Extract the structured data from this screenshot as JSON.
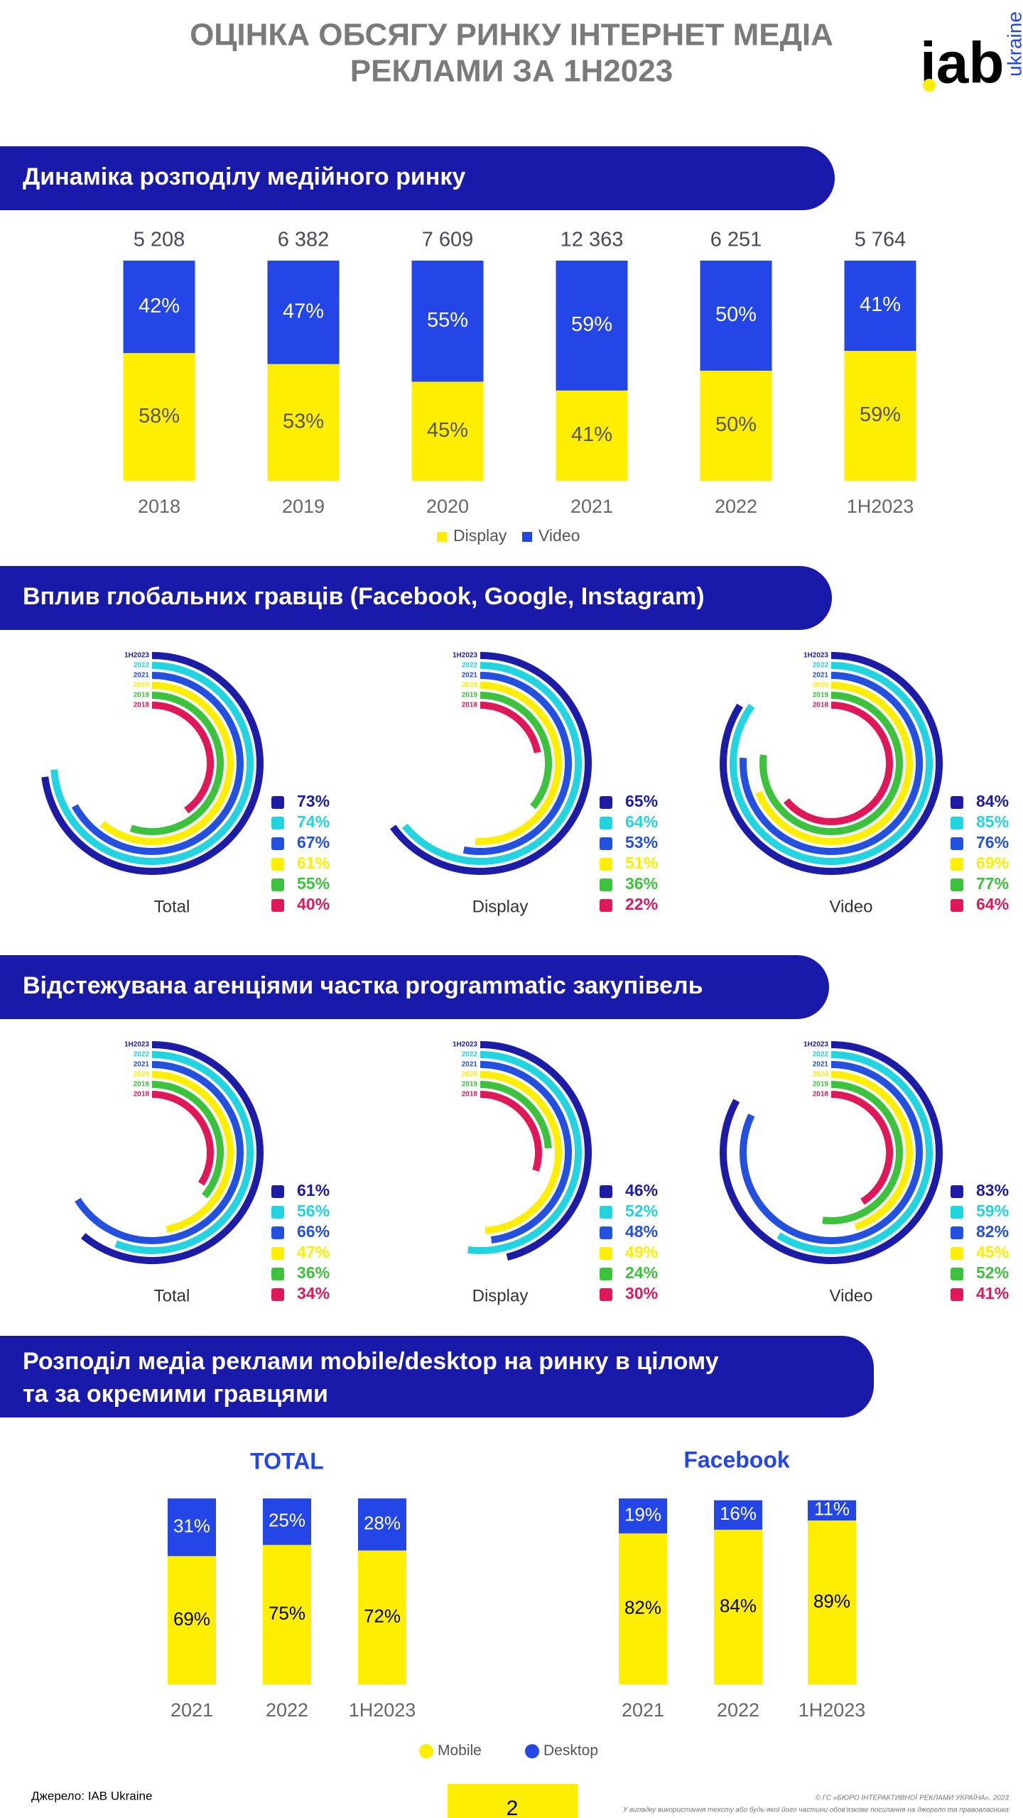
{
  "header": {
    "title": [
      "ОЦІНКА ОБСЯГУ РИНКУ ІНТЕРНЕТ МЕДІА",
      "РЕКЛАМИ ЗА 1Н2023"
    ],
    "logo": "iab",
    "logo_sub": "ukraine"
  },
  "sections": [
    [
      "Динаміка розподілу медійного ринку"
    ],
    [
      "Вплив глобальних гравців (Facebook, Google, Instagram)"
    ],
    [
      "Відстежувана агенціями частка programmatic закупівель"
    ],
    [
      "Розподіл медіа реклами mobile/desktop на ринку в цілому",
      "та за окремими гравцями"
    ]
  ],
  "chart_data": [
    {
      "type": "stacked_bar",
      "categories": [
        "2018",
        "2019",
        "2020",
        "2021",
        "2022",
        "1H2023"
      ],
      "annotations": [
        "5 208",
        "6 382",
        "7 609",
        "12 363",
        "6 251",
        "5 764"
      ],
      "ylim": [
        0,
        100
      ],
      "series": [
        {
          "name": "Display",
          "color": "#ffee00",
          "values": [
            58,
            53,
            45,
            41,
            50,
            59
          ],
          "value_labels": [
            "58%",
            "53%",
            "45%",
            "41%",
            "50%",
            "59%"
          ]
        },
        {
          "name": "Video",
          "color": "#2446e6",
          "values": [
            42,
            47,
            55,
            59,
            50,
            41
          ],
          "value_labels": [
            "42%",
            "47%",
            "55%",
            "59%",
            "50%",
            "41%"
          ]
        }
      ]
    },
    {
      "type": "radial",
      "label": "Total",
      "ylim": [
        0,
        100
      ],
      "categories": [
        "1H2023",
        "2022",
        "2021",
        "2020",
        "2019",
        "2018"
      ],
      "colors": [
        "#1c1ca6",
        "#22d3e0",
        "#2450e0",
        "#ffee00",
        "#3cc23c",
        "#e0185a"
      ],
      "values": [
        73,
        74,
        67,
        61,
        55,
        40
      ],
      "value_labels": [
        "73%",
        "74%",
        "67%",
        "61%",
        "55%",
        "40%"
      ]
    },
    {
      "type": "radial",
      "label": "Display",
      "ylim": [
        0,
        100
      ],
      "categories": [
        "1H2023",
        "2022",
        "2021",
        "2020",
        "2019",
        "2018"
      ],
      "colors": [
        "#1c1ca6",
        "#22d3e0",
        "#2450e0",
        "#ffee00",
        "#3cc23c",
        "#e0185a"
      ],
      "values": [
        65,
        64,
        53,
        51,
        36,
        22
      ],
      "value_labels": [
        "65%",
        "64%",
        "53%",
        "51%",
        "36%",
        "22%"
      ]
    },
    {
      "type": "radial",
      "label": "Video",
      "ylim": [
        0,
        100
      ],
      "categories": [
        "1H2023",
        "2022",
        "2021",
        "2020",
        "2019",
        "2018"
      ],
      "colors": [
        "#1c1ca6",
        "#22d3e0",
        "#2450e0",
        "#ffee00",
        "#3cc23c",
        "#e0185a"
      ],
      "values": [
        84,
        85,
        76,
        69,
        77,
        64
      ],
      "value_labels": [
        "84%",
        "85%",
        "76%",
        "69%",
        "77%",
        "64%"
      ]
    },
    {
      "type": "radial",
      "label": "Total",
      "ylim": [
        0,
        100
      ],
      "categories": [
        "1H2023",
        "2022",
        "2021",
        "2020",
        "2019",
        "2018"
      ],
      "colors": [
        "#1c1ca6",
        "#22d3e0",
        "#2450e0",
        "#ffee00",
        "#3cc23c",
        "#e0185a"
      ],
      "values": [
        61,
        56,
        66,
        47,
        36,
        34
      ],
      "value_labels": [
        "61%",
        "56%",
        "66%",
        "47%",
        "36%",
        "34%"
      ]
    },
    {
      "type": "radial",
      "label": "Display",
      "ylim": [
        0,
        100
      ],
      "categories": [
        "1H2023",
        "2022",
        "2021",
        "2020",
        "2019",
        "2018"
      ],
      "colors": [
        "#1c1ca6",
        "#22d3e0",
        "#2450e0",
        "#ffee00",
        "#3cc23c",
        "#e0185a"
      ],
      "values": [
        46,
        52,
        48,
        49,
        24,
        30
      ],
      "value_labels": [
        "46%",
        "52%",
        "48%",
        "49%",
        "24%",
        "30%"
      ]
    },
    {
      "type": "radial",
      "label": "Video",
      "ylim": [
        0,
        100
      ],
      "categories": [
        "1H2023",
        "2022",
        "2021",
        "2020",
        "2019",
        "2018"
      ],
      "colors": [
        "#1c1ca6",
        "#22d3e0",
        "#2450e0",
        "#ffee00",
        "#3cc23c",
        "#e0185a"
      ],
      "values": [
        83,
        59,
        82,
        45,
        52,
        41
      ],
      "value_labels": [
        "83%",
        "59%",
        "82%",
        "45%",
        "52%",
        "41%"
      ]
    },
    {
      "type": "stacked_bar",
      "title": "TOTAL",
      "categories": [
        "2021",
        "2022",
        "1H2023"
      ],
      "ylim": [
        0,
        100
      ],
      "series": [
        {
          "name": "Mobile",
          "color": "#ffee00",
          "values": [
            69,
            75,
            72
          ],
          "value_labels": [
            "69%",
            "75%",
            "72%"
          ]
        },
        {
          "name": "Desktop",
          "color": "#2446e6",
          "values": [
            31,
            25,
            28
          ],
          "value_labels": [
            "31%",
            "25%",
            "28%"
          ]
        }
      ]
    },
    {
      "type": "stacked_bar",
      "title": "Facebook",
      "categories": [
        "2021",
        "2022",
        "1H2023"
      ],
      "ylim": [
        0,
        101
      ],
      "series": [
        {
          "name": "Mobile",
          "color": "#ffee00",
          "values": [
            82,
            84,
            89
          ],
          "value_labels": [
            "82%",
            "84%",
            "89%"
          ]
        },
        {
          "name": "Desktop",
          "color": "#2446e6",
          "values": [
            19,
            16,
            11
          ],
          "value_labels": [
            "19%",
            "16%",
            "11%"
          ]
        }
      ]
    }
  ],
  "footer": {
    "source": "Джерело: IAB Ukraine",
    "page": "2",
    "copyright": "© ГС «БЮРО ІНТЕРАКТИВНОЇ РЕКЛАМИ УКРАЇНА», 2023",
    "note": "У випадку використання тексту або будь-якої його частини обов'язкове посилання на джерело та правовласника"
  }
}
